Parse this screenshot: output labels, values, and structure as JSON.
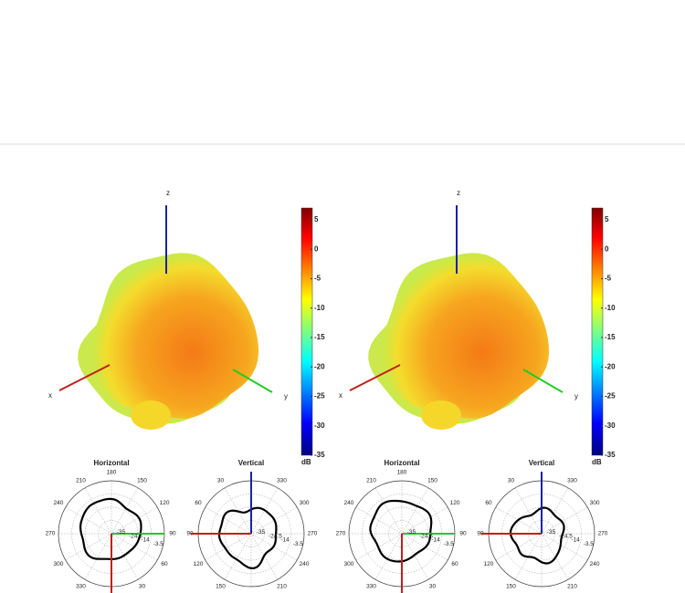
{
  "panels": [
    {
      "axis_labels": {
        "z": "z",
        "x": "x",
        "y": "y"
      },
      "colorbar": {
        "unit": "dB",
        "lim": [
          -35,
          7
        ],
        "ticks": [
          5,
          0,
          -5,
          -10,
          -15,
          -20,
          -25,
          -30,
          -35
        ]
      },
      "polar": [
        {
          "title": "Horizontal",
          "angle_labels": [
            "180",
            "150",
            "120",
            "90",
            "60",
            "30",
            "330",
            "300",
            "270",
            "240",
            "210"
          ],
          "ring_labels": [
            "-35",
            "-24.5",
            "-14",
            "-3.5"
          ]
        },
        {
          "title": "Vertical",
          "angle_labels": [
            "330",
            "300",
            "270",
            "240",
            "210",
            "150",
            "120",
            "90",
            "60",
            "30"
          ],
          "ring_labels": [
            "-35",
            "-24.5",
            "-14",
            "-3.5"
          ]
        }
      ]
    },
    {
      "axis_labels": {
        "z": "z",
        "x": "x",
        "y": "y"
      },
      "colorbar": {
        "unit": "dB",
        "lim": [
          -35,
          7
        ],
        "ticks": [
          5,
          0,
          -5,
          -10,
          -15,
          -20,
          -25,
          -30,
          -35
        ]
      },
      "polar": [
        {
          "title": "Horizontal",
          "angle_labels": [
            "180",
            "150",
            "120",
            "90",
            "60",
            "30",
            "330",
            "300",
            "270",
            "240",
            "210"
          ],
          "ring_labels": [
            "-35",
            "-24.5",
            "-14",
            "-3.5"
          ]
        },
        {
          "title": "Vertical",
          "angle_labels": [
            "330",
            "300",
            "270",
            "240",
            "210",
            "150",
            "120",
            "90",
            "60",
            "30"
          ],
          "ring_labels": [
            "-35",
            "-24.5",
            "-14",
            "-3.5"
          ]
        }
      ]
    }
  ]
}
